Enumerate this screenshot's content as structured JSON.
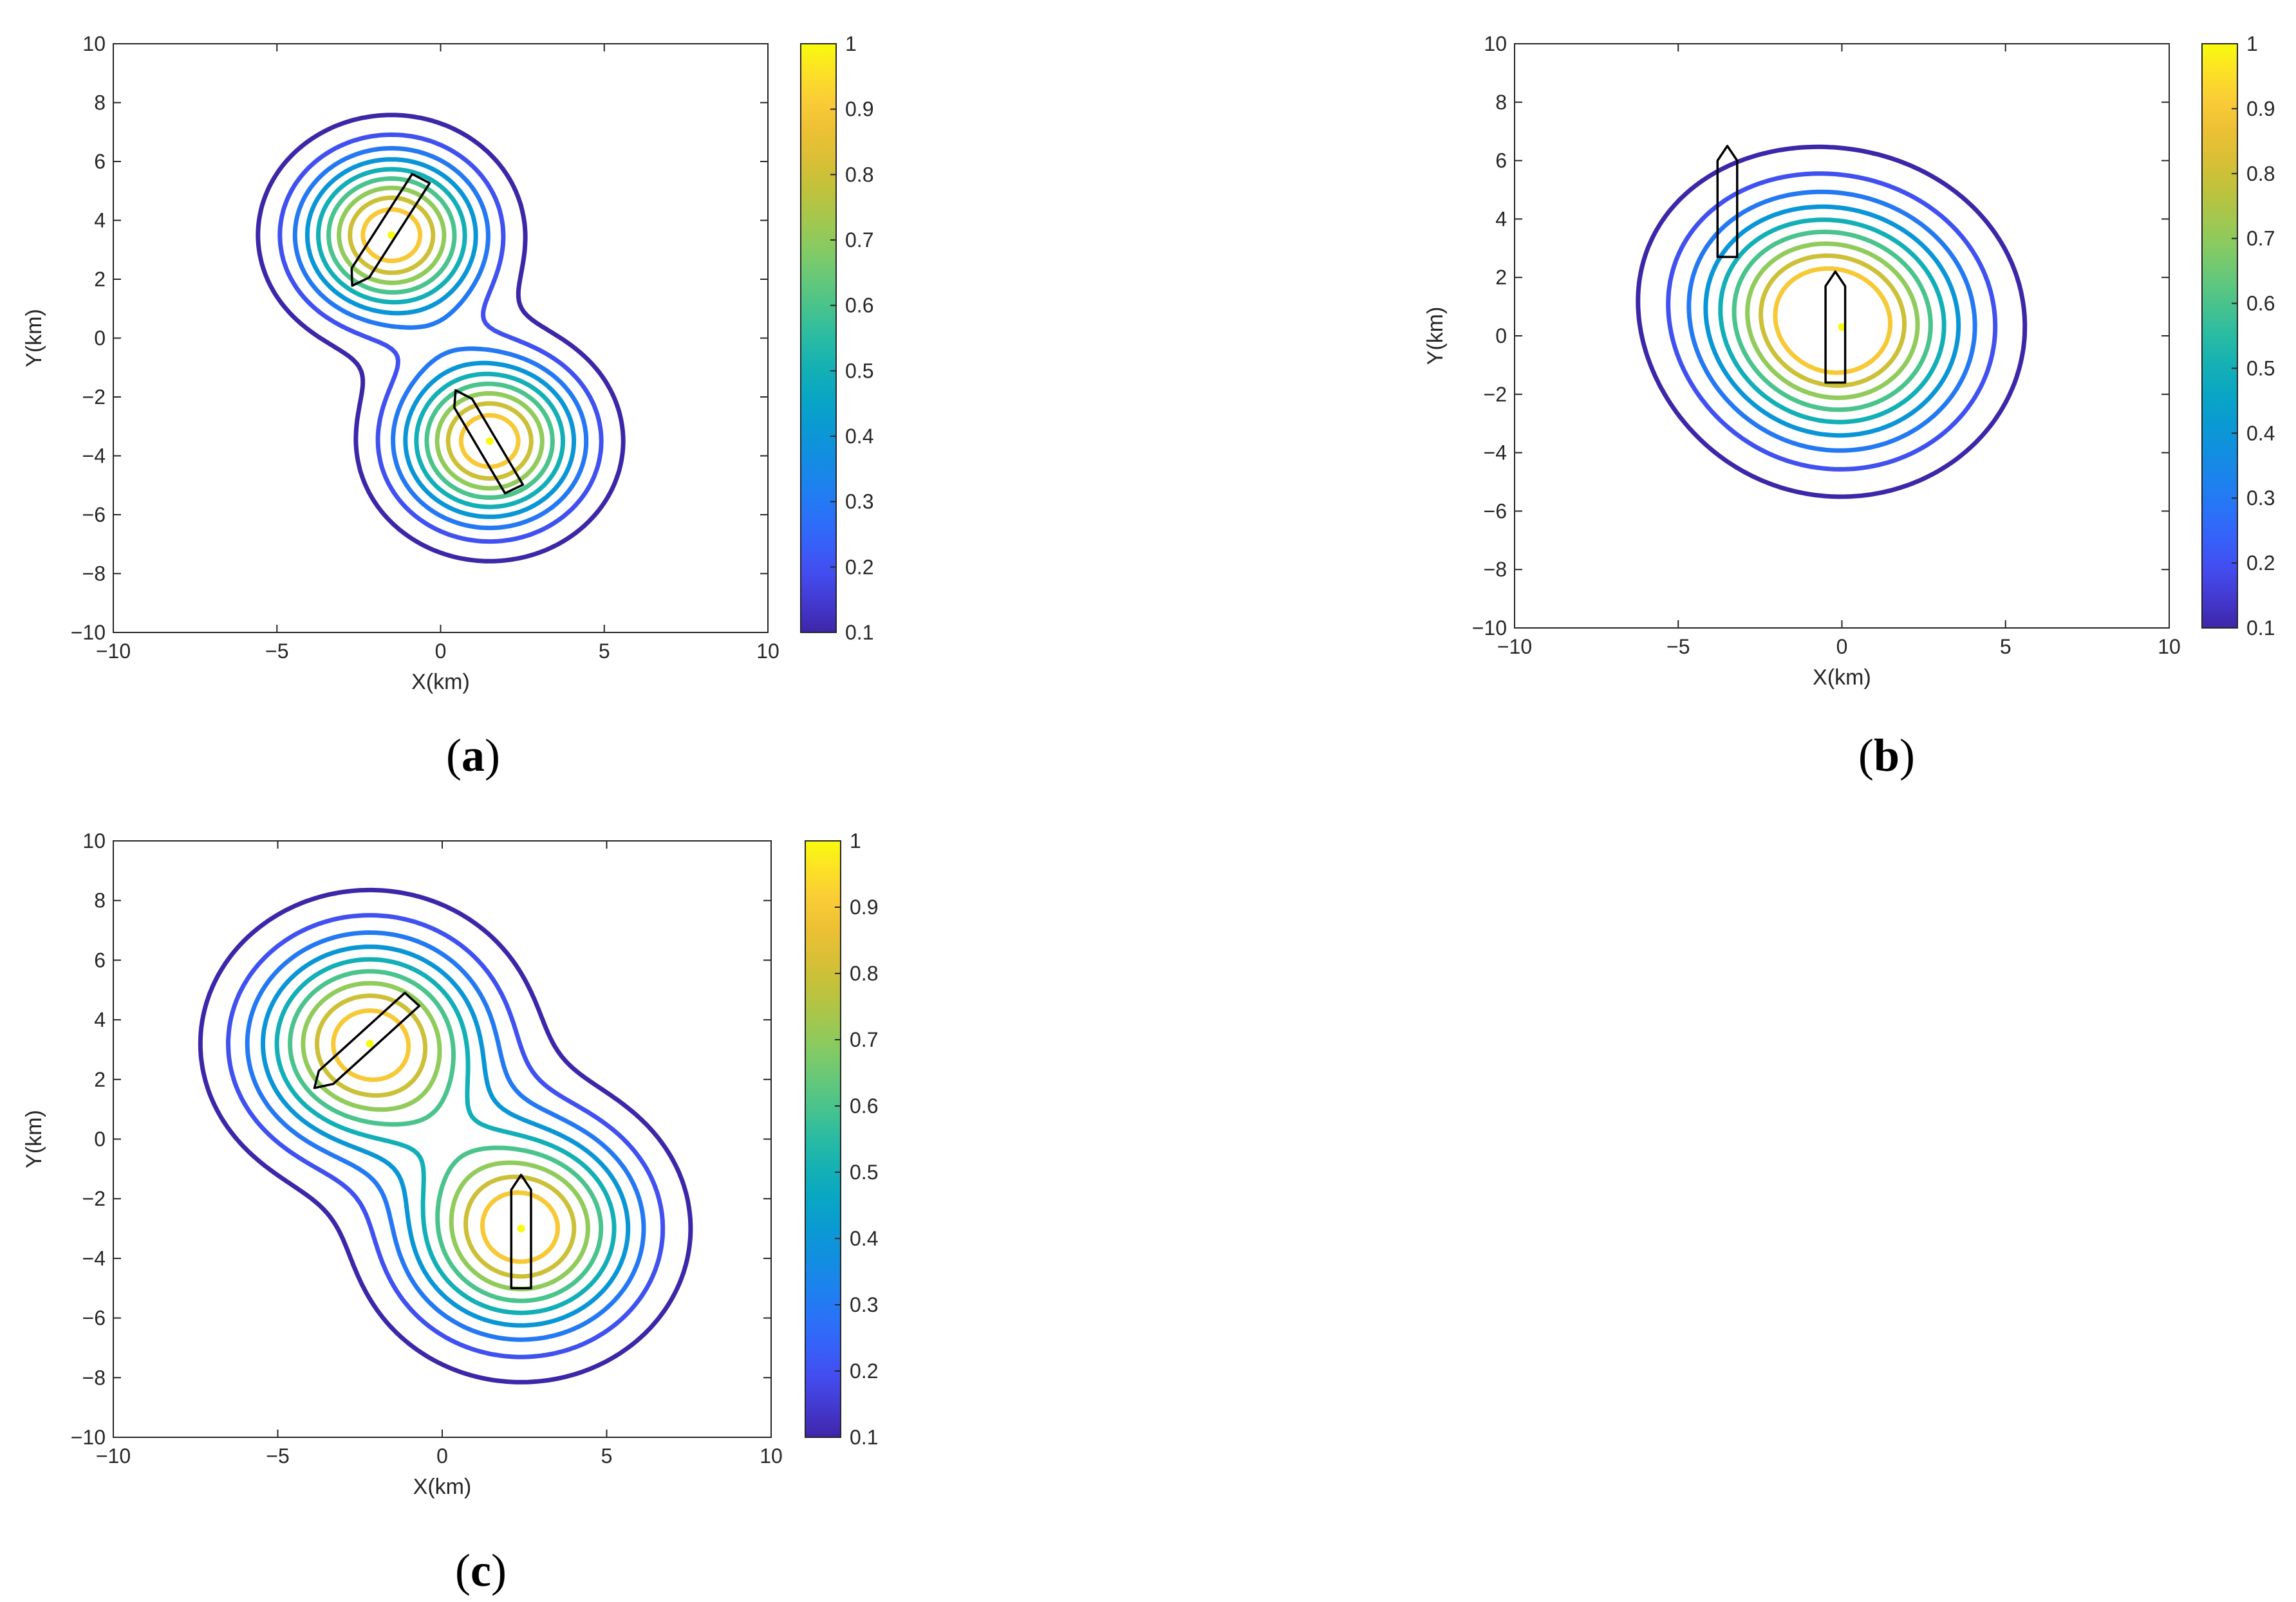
{
  "chart_data": [
    {
      "type": "contour",
      "panel_label": "a",
      "xlabel": "X(km)",
      "ylabel": "Y(km)",
      "xlim": [
        -10,
        10
      ],
      "ylim": [
        -10,
        10
      ],
      "xticks": [
        "−10",
        "−5",
        "0",
        "5",
        "10"
      ],
      "yticks": [
        "−10",
        "−8",
        "−6",
        "−4",
        "−2",
        "0",
        "2",
        "4",
        "6",
        "8",
        "10"
      ],
      "contour_levels": [
        0.1,
        0.2,
        0.3,
        0.4,
        0.5,
        0.6,
        0.7,
        0.8,
        0.9
      ],
      "colorbar": {
        "min": 0.1,
        "max": 1,
        "ticks": [
          "0.1",
          "0.2",
          "0.3",
          "0.4",
          "0.5",
          "0.6",
          "0.7",
          "0.8",
          "0.9",
          "1"
        ]
      },
      "peaks": [
        {
          "x": -1.5,
          "y": 3.5,
          "sx": 1.9,
          "sy": 1.9,
          "amp": 1
        },
        {
          "x": 1.5,
          "y": -3.5,
          "sx": 1.9,
          "sy": 1.9,
          "amp": 1
        }
      ],
      "ships": [
        {
          "x": -1.65,
          "y": 3.6,
          "heading_deg": 150,
          "length": 4.2,
          "width": 0.62
        },
        {
          "x": 1.35,
          "y": -3.45,
          "heading_deg": 28,
          "length": 3.8,
          "width": 0.62
        }
      ]
    },
    {
      "type": "contour",
      "panel_label": "b",
      "xlabel": "X(km)",
      "ylabel": "Y(km)",
      "xlim": [
        -10,
        10
      ],
      "ylim": [
        -10,
        10
      ],
      "xticks": [
        "−10",
        "−5",
        "0",
        "5",
        "10"
      ],
      "yticks": [
        "−10",
        "−8",
        "−6",
        "−4",
        "−2",
        "0",
        "2",
        "4",
        "6",
        "8",
        "10"
      ],
      "contour_levels": [
        0.1,
        0.2,
        0.3,
        0.4,
        0.5,
        0.6,
        0.7,
        0.8,
        0.9
      ],
      "colorbar": {
        "min": 0.1,
        "max": 1,
        "ticks": [
          "0.1",
          "0.2",
          "0.3",
          "0.4",
          "0.5",
          "0.6",
          "0.7",
          "0.8",
          "0.9",
          "1"
        ]
      },
      "peaks": [
        {
          "x": 0,
          "y": 0.3,
          "sx": 2.6,
          "sy": 2.7,
          "amp": 1
        },
        {
          "x": -2.2,
          "y": 2.0,
          "sx": 2.4,
          "sy": 2.4,
          "amp": 0.2
        }
      ],
      "ships": [
        {
          "x": -3.5,
          "y": 4.6,
          "heading_deg": 0,
          "length": 3.8,
          "width": 0.6
        },
        {
          "x": -0.2,
          "y": 0.3,
          "heading_deg": 0,
          "length": 3.8,
          "width": 0.6
        }
      ]
    },
    {
      "type": "contour",
      "panel_label": "c",
      "xlabel": "X(km)",
      "ylabel": "Y(km)",
      "xlim": [
        -10,
        10
      ],
      "ylim": [
        -10,
        10
      ],
      "xticks": [
        "−10",
        "−5",
        "0",
        "5",
        "10"
      ],
      "yticks": [
        "−10",
        "−8",
        "−6",
        "−4",
        "−2",
        "0",
        "2",
        "4",
        "6",
        "8",
        "10"
      ],
      "contour_levels": [
        0.1,
        0.2,
        0.3,
        0.4,
        0.5,
        0.6,
        0.7,
        0.8,
        0.9
      ],
      "colorbar": {
        "min": 0.1,
        "max": 1,
        "ticks": [
          "0.1",
          "0.2",
          "0.3",
          "0.4",
          "0.5",
          "0.6",
          "0.7",
          "0.8",
          "0.9",
          "1"
        ]
      },
      "peaks": [
        {
          "x": -2.2,
          "y": 3.2,
          "sx": 2.4,
          "sy": 2.4,
          "amp": 1
        },
        {
          "x": 2.4,
          "y": -3.0,
          "sx": 2.4,
          "sy": 2.4,
          "amp": 1
        }
      ],
      "ships": [
        {
          "x": -2.4,
          "y": 3.2,
          "heading_deg": 135,
          "length": 4.2,
          "width": 0.62
        },
        {
          "x": 2.4,
          "y": -3.1,
          "heading_deg": 0,
          "length": 3.8,
          "width": 0.6
        }
      ]
    }
  ]
}
